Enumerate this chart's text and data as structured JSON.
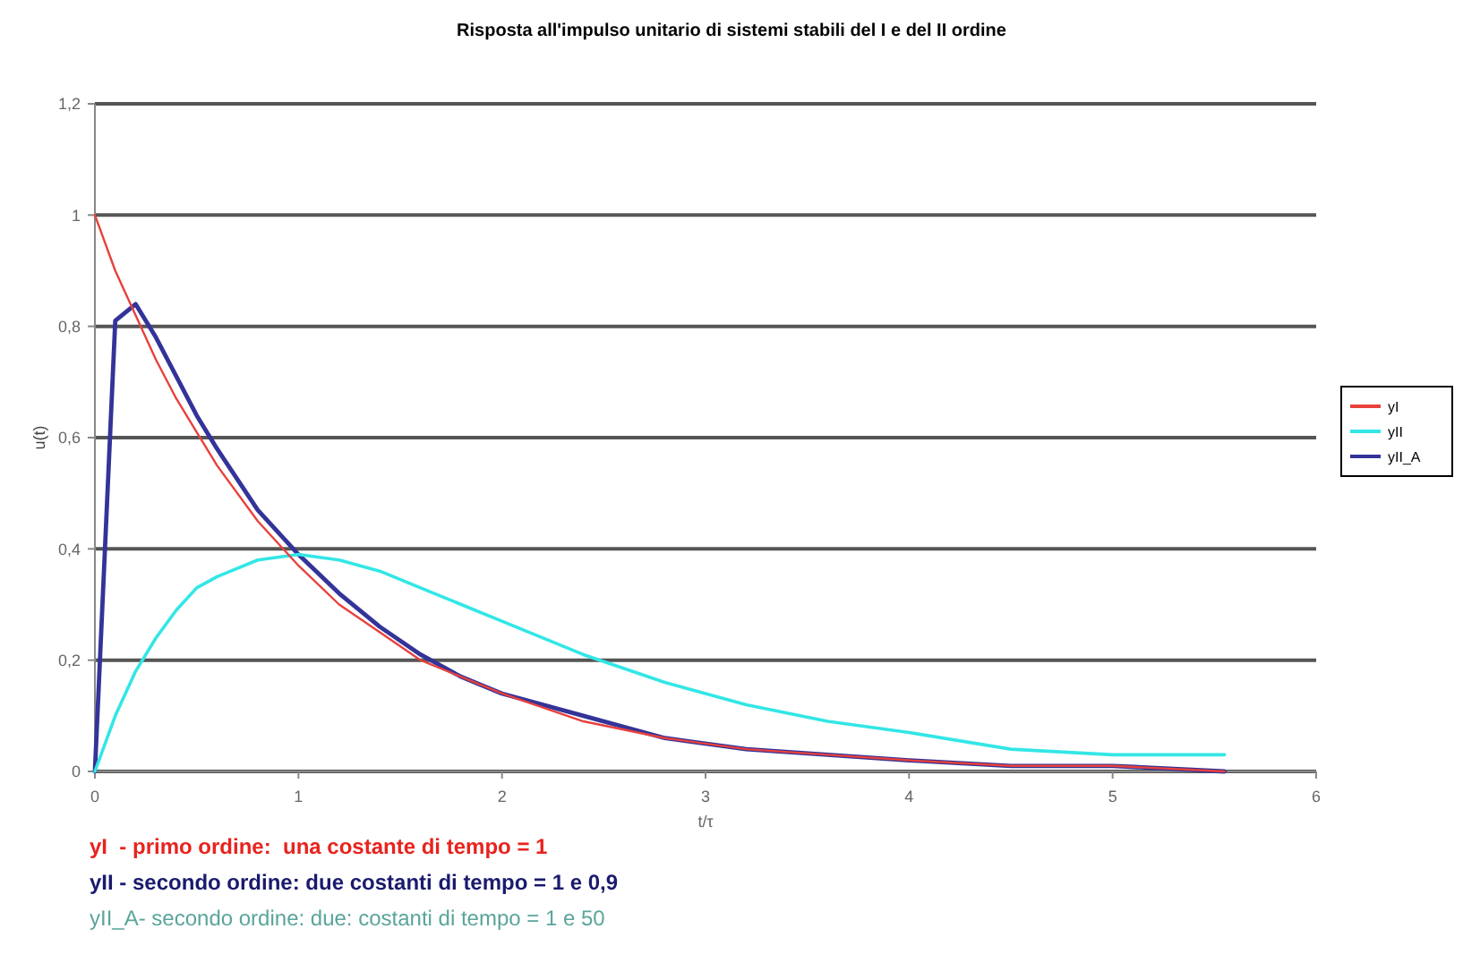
{
  "chart_data": {
    "type": "line",
    "title": "Risposta all'impulso unitario di sistemi stabili del I e del II ordine",
    "xlabel": "t/τ",
    "ylabel": "u(t)",
    "x": [
      0,
      0.1,
      0.2,
      0.3,
      0.4,
      0.5,
      0.6,
      0.8,
      1.0,
      1.2,
      1.4,
      1.6,
      1.8,
      2.0,
      2.4,
      2.8,
      3.2,
      3.6,
      4.0,
      4.5,
      5.0,
      5.55
    ],
    "series": [
      {
        "name": "yI",
        "color": "#e8413c",
        "values": [
          1,
          0.9,
          0.82,
          0.74,
          0.67,
          0.61,
          0.55,
          0.45,
          0.37,
          0.3,
          0.25,
          0.2,
          0.17,
          0.14,
          0.09,
          0.06,
          0.04,
          0.03,
          0.02,
          0.01,
          0.01,
          0.0
        ]
      },
      {
        "name": "yII",
        "color": "#33e6e6",
        "values": [
          0,
          0.1,
          0.18,
          0.24,
          0.29,
          0.33,
          0.35,
          0.38,
          0.39,
          0.38,
          0.36,
          0.33,
          0.3,
          0.27,
          0.21,
          0.16,
          0.12,
          0.09,
          0.07,
          0.04,
          0.03,
          0.03
        ]
      },
      {
        "name": "yII_A",
        "color": "#333399",
        "values": [
          0,
          0.81,
          0.84,
          0.78,
          0.71,
          0.64,
          0.58,
          0.47,
          0.39,
          0.32,
          0.26,
          0.21,
          0.17,
          0.14,
          0.1,
          0.06,
          0.04,
          0.03,
          0.02,
          0.01,
          0.01,
          0.0
        ]
      }
    ],
    "xlim": [
      0,
      6
    ],
    "xticks": [
      0,
      1,
      2,
      3,
      4,
      5,
      6
    ],
    "ylim": [
      0,
      1.2
    ],
    "yticks": [
      0,
      {
        "value": 0.2,
        "label": "0,2"
      },
      {
        "value": 0.4,
        "label": "0,4"
      },
      {
        "value": 0.6,
        "label": "0,6"
      },
      {
        "value": 0.8,
        "label": "0,8"
      },
      1,
      {
        "value": 1.2,
        "label": "1,2"
      }
    ],
    "grid": "y",
    "legend": "right",
    "marker": "none",
    "line_style": "solid",
    "annotations": [
      "yI  - primo ordine:  una costante di tempo = 1",
      "yII - secondo ordine: due costanti di tempo = 1 e 0,9",
      "yII_A- secondo ordine: due: costanti di tempo = 1 e 50"
    ]
  }
}
